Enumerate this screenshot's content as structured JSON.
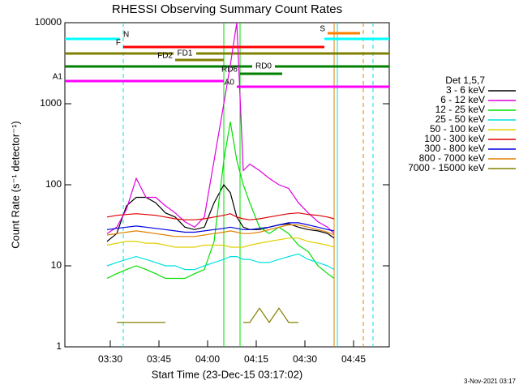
{
  "chart_data": {
    "type": "line",
    "log_y": true,
    "title": "RHESSI Observing Summary Count Rates",
    "x_label": "Start Time (23-Dec-15 03:17:02)",
    "y_label": "Count Rate (s⁻¹ detector⁻¹)",
    "legend_title": "Det 1,5,7",
    "footer": "3-Nov-2021 03:17",
    "xlim": [
      "03:16",
      "04:56"
    ],
    "xticks": [
      "03:30",
      "03:45",
      "04:00",
      "04:15",
      "04:30",
      "04:45"
    ],
    "ylim": [
      1,
      10000
    ],
    "yticks": [
      1,
      10,
      100,
      1000,
      10000
    ],
    "x": [
      "03:29",
      "03:32",
      "03:35",
      "03:38",
      "03:41",
      "03:44",
      "03:47",
      "03:50",
      "03:53",
      "03:56",
      "03:59",
      "04:02",
      "04:05",
      "04:07",
      "04:09",
      "04:11",
      "04:13",
      "04:16",
      "04:19",
      "04:22",
      "04:25",
      "04:28",
      "04:31",
      "04:34",
      "04:37",
      "04:39"
    ],
    "series": [
      {
        "name": "3 - 6 keV",
        "color": "#000000",
        "values": [
          20,
          25,
          55,
          70,
          70,
          60,
          45,
          40,
          30,
          28,
          30,
          60,
          100,
          80,
          40,
          30,
          28,
          28,
          30,
          32,
          33,
          30,
          28,
          27,
          25,
          22
        ]
      },
      {
        "name": "6 - 12 keV",
        "color": "#e000e0",
        "values": [
          25,
          30,
          50,
          120,
          70,
          70,
          55,
          45,
          35,
          30,
          40,
          200,
          1000,
          3000,
          10000,
          150,
          180,
          150,
          120,
          100,
          90,
          60,
          45,
          35,
          30,
          25
        ]
      },
      {
        "name": "12 - 25 keV",
        "color": "#00e000",
        "values": [
          7,
          8,
          9,
          10,
          9,
          8,
          7,
          7,
          7,
          8,
          9,
          20,
          200,
          600,
          200,
          100,
          60,
          30,
          25,
          30,
          25,
          18,
          15,
          10,
          8,
          7
        ]
      },
      {
        "name": "25 - 50 keV",
        "color": "#00e0e0",
        "values": [
          10,
          11,
          12,
          13,
          12,
          11,
          10,
          10,
          9,
          9,
          10,
          11,
          12,
          13,
          13,
          12,
          12,
          11,
          11,
          12,
          13,
          14,
          12,
          11,
          10,
          9
        ]
      },
      {
        "name": "50 - 100 keV",
        "color": "#e0d000",
        "values": [
          18,
          19,
          20,
          20,
          19,
          19,
          18,
          17,
          17,
          17,
          18,
          18,
          18,
          17,
          17,
          17,
          18,
          19,
          20,
          21,
          22,
          22,
          20,
          19,
          18,
          17
        ]
      },
      {
        "name": "100 - 300 keV",
        "color": "#e00000",
        "values": [
          40,
          42,
          43,
          44,
          43,
          42,
          40,
          38,
          37,
          37,
          38,
          40,
          42,
          44,
          40,
          38,
          37,
          38,
          40,
          42,
          44,
          45,
          43,
          42,
          40,
          38
        ]
      },
      {
        "name": "300 - 800 keV",
        "color": "#0000e0",
        "values": [
          28,
          29,
          30,
          31,
          30,
          29,
          28,
          27,
          26,
          26,
          27,
          28,
          29,
          30,
          29,
          28,
          28,
          29,
          30,
          32,
          34,
          34,
          32,
          30,
          28,
          27
        ]
      },
      {
        "name": "800 - 7000 keV",
        "color": "#e08000",
        "values": [
          24,
          25,
          26,
          27,
          26,
          25,
          24,
          23,
          23,
          23,
          24,
          25,
          26,
          27,
          26,
          25,
          25,
          26,
          28,
          30,
          32,
          32,
          30,
          28,
          26,
          24
        ]
      },
      {
        "name": "7000 - 15000 keV",
        "color": "#808000",
        "values": [
          null,
          2,
          2,
          2,
          2,
          2,
          2,
          null,
          null,
          null,
          null,
          null,
          null,
          null,
          null,
          2,
          2,
          3,
          2,
          3,
          2,
          2,
          null,
          null,
          null,
          null
        ]
      }
    ],
    "flags": [
      {
        "label": "N",
        "color": "#00ffff",
        "start": "03:16",
        "end": "03:33"
      },
      {
        "color": "#00ffff",
        "start": "04:36",
        "end": "04:56"
      },
      {
        "label": "S",
        "color": "#ff8000",
        "start": "04:37",
        "end": "04:47"
      },
      {
        "label": "F",
        "color": "#ff0000",
        "start": "03:34",
        "end": "04:36"
      },
      {
        "label": "FD1",
        "color": "#808000",
        "start": "03:16",
        "end": "04:56"
      },
      {
        "label": "FD2",
        "color": "#808000",
        "start": "03:50",
        "end": "04:05"
      },
      {
        "label": "RD0",
        "color": "#008000",
        "start": "03:16",
        "end": "04:56"
      },
      {
        "label": "RD6",
        "color": "#008000",
        "start": "04:10",
        "end": "04:23"
      },
      {
        "label": "A1",
        "color": "#ff00ff",
        "start": "03:16",
        "end": "04:05"
      },
      {
        "label": "A0",
        "color": "#ff00ff",
        "start": "04:09",
        "end": "04:56"
      }
    ],
    "vlines": [
      {
        "time": "03:34",
        "color": "#00e0e0",
        "dashed": true
      },
      {
        "time": "04:40",
        "color": "#00e0e0",
        "dashed": false
      },
      {
        "time": "04:39",
        "color": "#e08000",
        "dashed": false
      },
      {
        "time": "04:48",
        "color": "#e08000",
        "dashed": true
      },
      {
        "time": "04:51",
        "color": "#00e0e0",
        "dashed": true
      },
      {
        "time": "04:05",
        "color": "#00e000",
        "dashed": false
      },
      {
        "time": "04:10",
        "color": "#00e000",
        "dashed": false
      }
    ]
  }
}
